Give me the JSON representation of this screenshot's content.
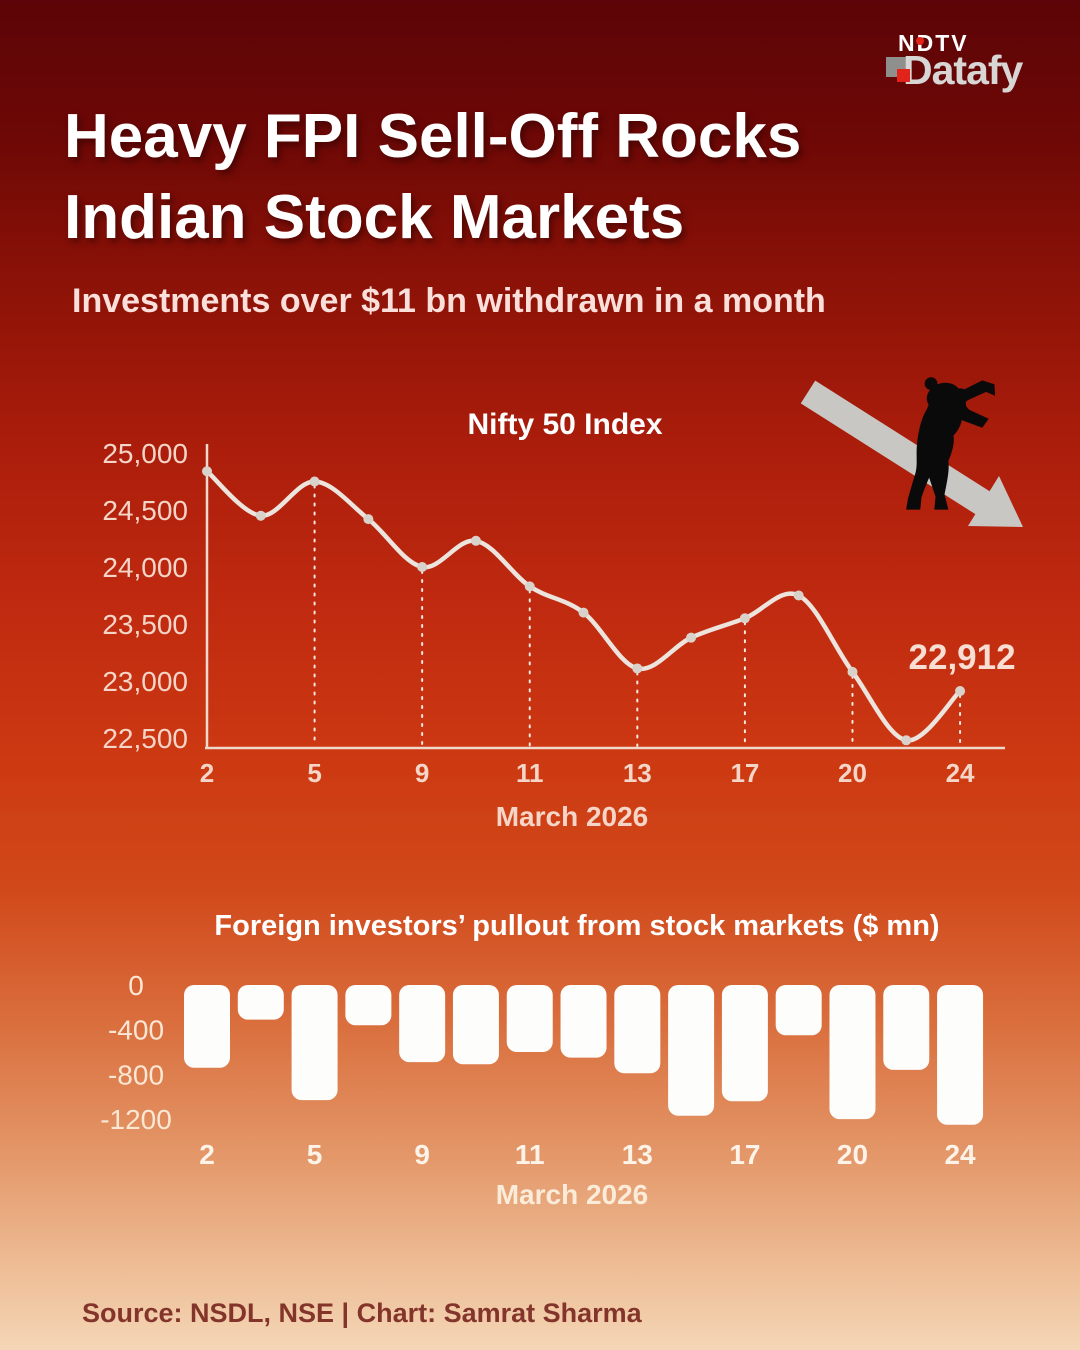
{
  "brand": {
    "ndtv": "NDTV",
    "datafy": "Datafy",
    "accent_red": "#e2231a"
  },
  "title": {
    "line1": "Heavy FPI Sell-Off Rocks",
    "line2": "Indian Stock Markets"
  },
  "subtitle": "Investments over $11 bn withdrawn in a month",
  "footer": {
    "text": "Source: NSDL, NSE | Chart: Samrat Sharma"
  },
  "colors": {
    "line_stroke": "#ece4dd",
    "point_fill": "#d9d2cb",
    "axis_stroke": "#eed9cc",
    "tick_label": "#f4d5c7",
    "bar_fill": "#fdfdfb",
    "bar_label": "#fbe7d4",
    "annotation": "#f9ded4",
    "arrow_gray": "#c9c7c3",
    "bear_black": "#0a0a0a"
  },
  "chart_data": [
    {
      "type": "line",
      "title": "Nifty 50 Index",
      "xlabel": "March 2026",
      "categories": [
        "2",
        "",
        "5",
        "",
        "9",
        "",
        "11",
        "",
        "13",
        "",
        "17",
        "",
        "20",
        "",
        "24"
      ],
      "values": [
        24840,
        24450,
        24750,
        24420,
        24000,
        24230,
        23830,
        23600,
        23110,
        23380,
        23550,
        23750,
        23080,
        22480,
        22912
      ],
      "y_ticks": [
        {
          "value": 25000,
          "label": "25,000"
        },
        {
          "value": 24500,
          "label": "24,500"
        },
        {
          "value": 24000,
          "label": "24,000"
        },
        {
          "value": 23500,
          "label": "23,500"
        },
        {
          "value": 23000,
          "label": "23,000"
        },
        {
          "value": 22500,
          "label": "22,500"
        }
      ],
      "ylim": [
        22400,
        25050
      ],
      "guide_indices": [
        2,
        4,
        6,
        8,
        10,
        12,
        14
      ],
      "annotation": {
        "index": 14,
        "label": "22,912"
      },
      "grid": false,
      "legend": "none"
    },
    {
      "type": "bar",
      "title": "Foreign investors’ pullout from stock markets ($ mn)",
      "xlabel": "March 2026",
      "categories": [
        "2",
        "",
        "5",
        "",
        "9",
        "",
        "11",
        "",
        "13",
        "",
        "17",
        "",
        "20",
        "",
        "24"
      ],
      "values": [
        -740,
        -310,
        -1030,
        -360,
        -690,
        -710,
        -600,
        -650,
        -790,
        -1170,
        -1040,
        -450,
        -1200,
        -760,
        -1250
      ],
      "y_ticks": [
        {
          "value": 0,
          "label": "0"
        },
        {
          "value": -400,
          "label": "-400"
        },
        {
          "value": -800,
          "label": "-800"
        },
        {
          "value": -1200,
          "label": "-1200"
        }
      ],
      "ylim": [
        0,
        -1300
      ],
      "grid": false,
      "legend": "none"
    }
  ]
}
